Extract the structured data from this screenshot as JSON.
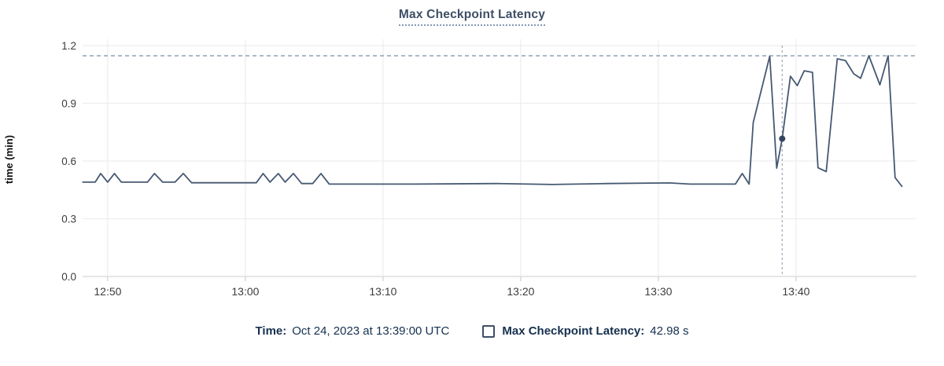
{
  "title": "Max Checkpoint Latency",
  "footer": {
    "time_label": "Time:",
    "time_value": "Oct 24, 2023 at 13:39:00 UTC",
    "series_label": "Max Checkpoint Latency:",
    "series_value": "42.98 s"
  },
  "colors": {
    "line": "#465972",
    "dot": "#34455e",
    "max_dash": "#7b8da8",
    "crosshair": "#9eaaba",
    "grid": "#ededed",
    "axis_line": "#e6e6e6",
    "tick_stub": "#cfcfcf",
    "tick_text": "#3c3c3c",
    "ylabel_text": "#111111",
    "title_text": "#3e4e66",
    "title_underline": "#8598b4",
    "footer_text": "#15304f",
    "swatch_border": "#3e5067"
  },
  "chart_data": {
    "type": "line",
    "title": "Max Checkpoint Latency",
    "xlabel": "",
    "ylabel": "time (min)",
    "y_ticks": [
      0.0,
      0.3,
      0.6,
      0.9,
      1.2
    ],
    "ylim": [
      0,
      1.23
    ],
    "x_range_estimate": [
      "12:48",
      "13:48"
    ],
    "grid": true,
    "x_ticks": [
      {
        "label": "12:50",
        "offset": 1.71
      },
      {
        "label": "13:00",
        "offset": 11.71
      },
      {
        "label": "13:10",
        "offset": 21.71
      },
      {
        "label": "13:20",
        "offset": 31.71
      },
      {
        "label": "13:30",
        "offset": 41.71
      },
      {
        "label": "13:40",
        "offset": 51.71
      }
    ],
    "max_marker": 1.147,
    "selected_point": {
      "offset": 50.7,
      "value": 0.716,
      "time": "Oct 24, 2023 at 13:39:00 UTC",
      "display": "42.98 s"
    },
    "series": [
      {
        "name": "Max Checkpoint Latency",
        "point_format": "[minutes_after_12:48, latency_min]",
        "points": [
          [
            -0.1,
            0.49
          ],
          [
            0.8,
            0.49
          ],
          [
            1.2,
            0.535
          ],
          [
            1.7,
            0.49
          ],
          [
            2.2,
            0.535
          ],
          [
            2.7,
            0.49
          ],
          [
            4.6,
            0.49
          ],
          [
            5.1,
            0.535
          ],
          [
            5.7,
            0.49
          ],
          [
            6.6,
            0.49
          ],
          [
            7.2,
            0.535
          ],
          [
            7.8,
            0.487
          ],
          [
            12.5,
            0.487
          ],
          [
            13.0,
            0.535
          ],
          [
            13.5,
            0.49
          ],
          [
            14.1,
            0.535
          ],
          [
            14.6,
            0.49
          ],
          [
            15.2,
            0.535
          ],
          [
            15.8,
            0.483
          ],
          [
            16.6,
            0.483
          ],
          [
            17.2,
            0.535
          ],
          [
            17.8,
            0.48
          ],
          [
            24.0,
            0.48
          ],
          [
            30.0,
            0.483
          ],
          [
            34.0,
            0.478
          ],
          [
            38.0,
            0.483
          ],
          [
            42.5,
            0.486
          ],
          [
            44.0,
            0.48
          ],
          [
            47.3,
            0.48
          ],
          [
            47.8,
            0.535
          ],
          [
            48.3,
            0.48
          ],
          [
            48.6,
            0.8
          ],
          [
            49.8,
            1.145
          ],
          [
            50.3,
            0.563
          ],
          [
            50.7,
            0.716
          ],
          [
            51.3,
            1.041
          ],
          [
            51.8,
            0.992
          ],
          [
            52.3,
            1.069
          ],
          [
            52.9,
            1.061
          ],
          [
            53.3,
            0.565
          ],
          [
            53.9,
            0.545
          ],
          [
            54.7,
            1.131
          ],
          [
            55.3,
            1.122
          ],
          [
            55.9,
            1.053
          ],
          [
            56.4,
            1.03
          ],
          [
            57.0,
            1.147
          ],
          [
            57.8,
            0.996
          ],
          [
            58.4,
            1.147
          ],
          [
            58.9,
            0.514
          ],
          [
            59.4,
            0.468
          ]
        ]
      }
    ],
    "legend_position": "bottom"
  }
}
